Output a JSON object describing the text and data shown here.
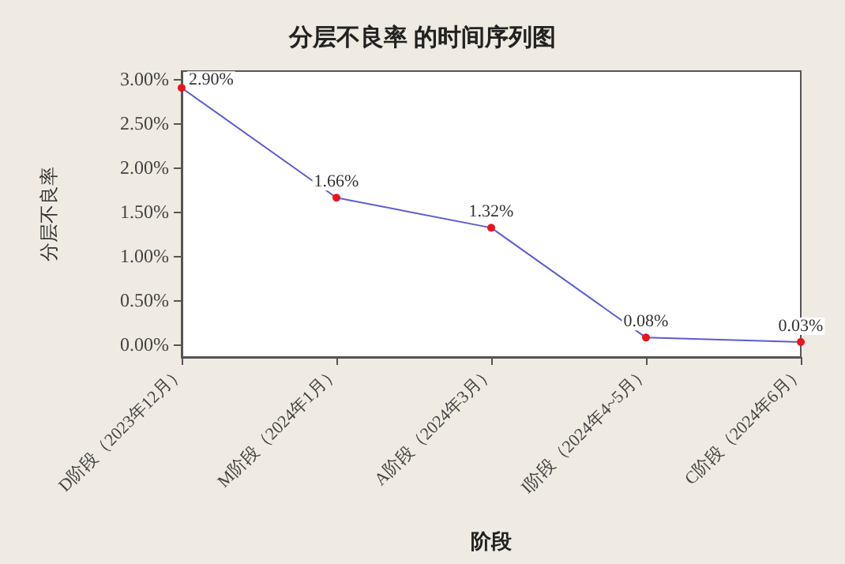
{
  "chart_data": {
    "type": "line",
    "title": "分层不良率 的时间序列图",
    "xlabel": "阶段",
    "ylabel": "分层不良率",
    "categories": [
      "D阶段（2023年12月）",
      "M阶段（2024年1月）",
      "A阶段（2024年3月）",
      "I阶段（2024年4~5月）",
      "C阶段（2024年6月）"
    ],
    "series": [
      {
        "color": "#5b5bd6",
        "colors": [
          "#e8141e",
          "#e8141e",
          "#e8141e",
          "#e8141e",
          "#e8141e"
        ],
        "values": [
          2.9,
          1.66,
          1.32,
          0.08,
          0.03
        ],
        "value_labels": [
          "2.90%",
          "1.66%",
          "1.32%",
          "0.08%",
          "0.03%"
        ]
      }
    ],
    "ylim": [
      -0.14,
      3.09
    ],
    "yticks": [
      {
        "value": 0,
        "label": "0.00%"
      },
      {
        "value": 0.5,
        "label": "0.50%"
      },
      {
        "value": 1,
        "label": "1.00%"
      },
      {
        "value": 1.5,
        "label": "1.50%"
      },
      {
        "value": 2,
        "label": "2.00%"
      },
      {
        "value": 2.5,
        "label": "2.50%"
      },
      {
        "value": 3,
        "label": "3.00%"
      }
    ],
    "marker": "circle",
    "grid": false
  }
}
